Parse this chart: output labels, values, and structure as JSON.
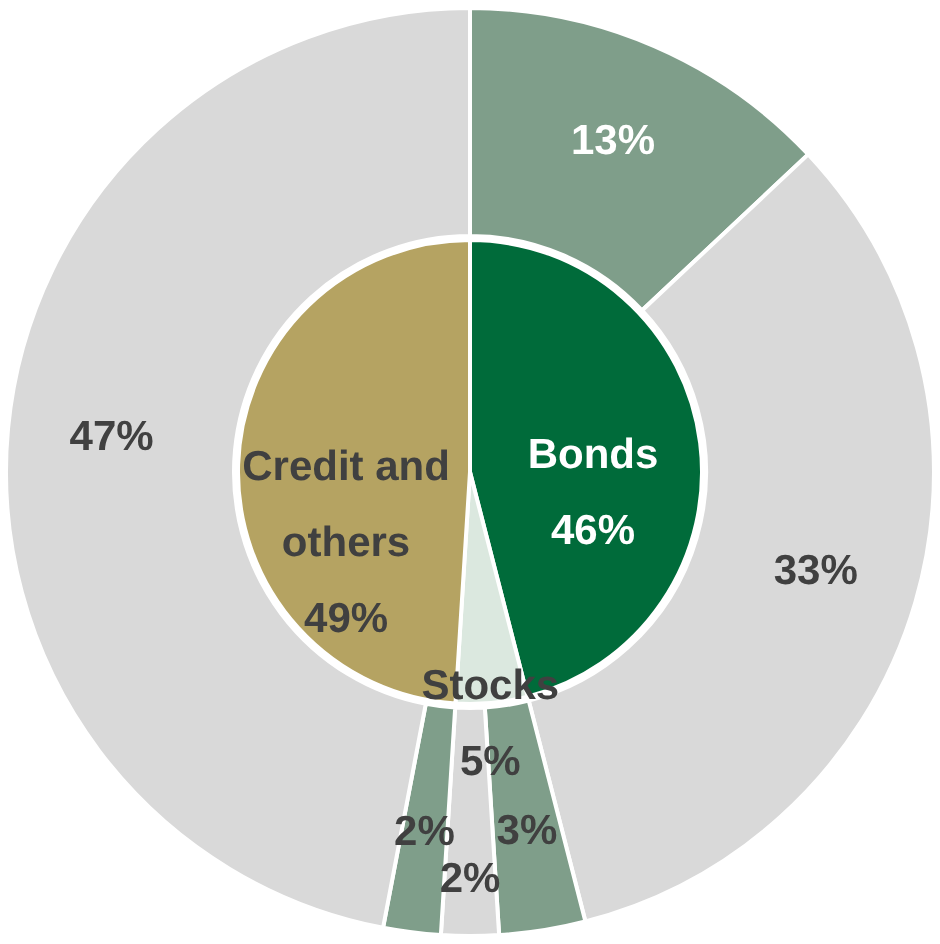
{
  "chart_data": [
    {
      "type": "pie",
      "categories": [
        "Bonds",
        "Stocks",
        "Credit and others"
      ],
      "values": [
        46,
        5,
        49
      ],
      "colors": [
        "#006b3a",
        "#dbe8df",
        "#b5a362"
      ],
      "value_labels": [
        "46%",
        "5%",
        "49%"
      ]
    },
    {
      "type": "donut",
      "categories": [
        null,
        null,
        null,
        null,
        null,
        null
      ],
      "values": [
        13,
        33,
        3,
        2,
        2,
        47
      ],
      "colors": [
        "#7f9e8a",
        "#d9d9d9",
        "#7f9e8a",
        "#d9d9d9",
        "#7f9e8a",
        "#d9d9d9"
      ],
      "value_labels": [
        "13%",
        "33%",
        "3%",
        "2%",
        "2%",
        "47%"
      ]
    }
  ]
}
